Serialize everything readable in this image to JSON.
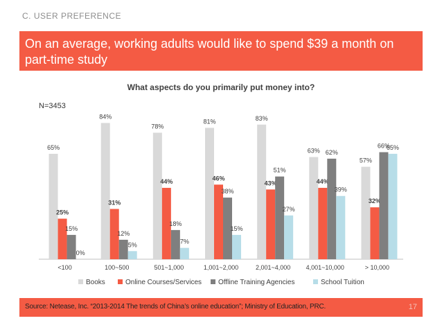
{
  "header": {
    "section": "C. USER PREFERENCE",
    "title": "On an average, working adults would like to spend $39 a month on part-time study"
  },
  "chart_data": {
    "type": "bar",
    "title": "What aspects do you primarily put money into?",
    "note": "N=3453",
    "categories": [
      "<100",
      "100~500",
      "501~1,000",
      "1,001~2,000",
      "2,001~4,000",
      "4,001~10,000",
      "> 10,000"
    ],
    "series": [
      {
        "name": "Books",
        "color": "#d9d9d9",
        "values": [
          65,
          84,
          78,
          81,
          83,
          63,
          57
        ],
        "labels": [
          "65%",
          "84%",
          "78%",
          "81%",
          "83%",
          "63%",
          "57%"
        ],
        "bold": false
      },
      {
        "name": "Online Courses/Services",
        "color": "#f45b44",
        "values": [
          25,
          31,
          44,
          46,
          43,
          44,
          32
        ],
        "labels": [
          "25%",
          "31%",
          "44%",
          "46%",
          "43%",
          "44%",
          "32%"
        ],
        "bold": true
      },
      {
        "name": "Offline Training Agencies",
        "color": "#7f7f7f",
        "values": [
          15,
          12,
          18,
          38,
          51,
          62,
          66
        ],
        "labels": [
          "15%",
          "12%",
          "18%",
          "38%",
          "51%",
          "62%",
          "66%"
        ],
        "bold": false
      },
      {
        "name": "School Tuition",
        "color": "#b7dde8",
        "values": [
          0,
          5,
          7,
          15,
          27,
          39,
          65
        ],
        "labels": [
          "0%",
          "5%",
          "7%",
          "15%",
          "27%",
          "39%",
          "65%"
        ],
        "bold": false
      }
    ],
    "ylim": [
      0,
      100
    ],
    "legend_position": "bottom"
  },
  "footer": {
    "source": "Source: Netease, Inc. “2013-2014 The trends of China’s online education”; Ministry of Education, PRC.",
    "page": "17"
  }
}
